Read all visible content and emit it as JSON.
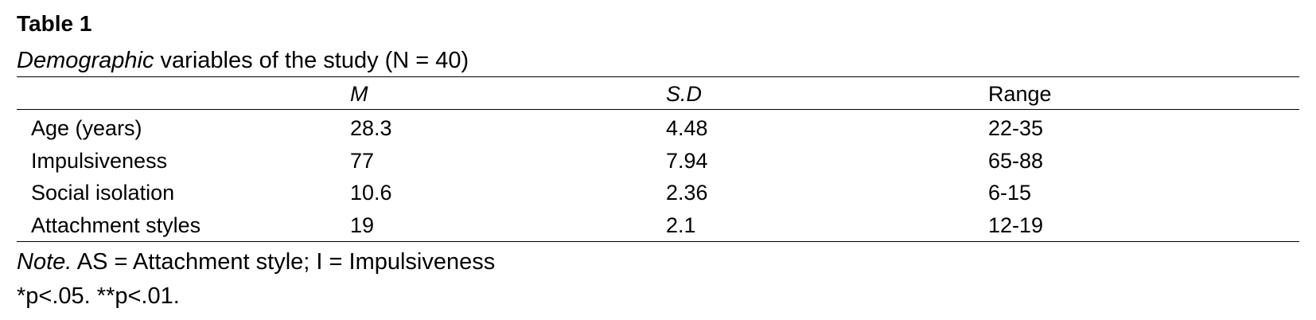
{
  "title": "Table 1",
  "caption": {
    "italic": "Demographic",
    "rest": " variables of the study (N = 40)"
  },
  "table": {
    "header": [
      "M",
      "S.D",
      "Range"
    ],
    "rows": [
      [
        "Age (years)",
        28.3,
        4.48,
        "22-35"
      ],
      [
        "Impulsiveness",
        77,
        7.94,
        "65-88"
      ],
      [
        "Social isolation",
        10.6,
        2.36,
        "6-15"
      ],
      [
        "Attachment styles",
        19,
        2.1,
        "12-19"
      ]
    ]
  },
  "note": {
    "label": "Note.",
    "text": " AS = Attachment style; I = Impulsiveness"
  },
  "footnote": "*p<.05. **p<.01."
}
